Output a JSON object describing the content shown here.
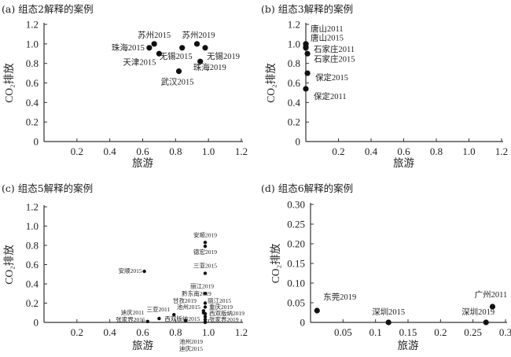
{
  "chart_data": [
    {
      "type": "scatter",
      "title": "(a) 组态2解释的案例",
      "xlabel": "旅游",
      "ylabel": "CO₂排放",
      "xlim": [
        0,
        1.2
      ],
      "ylim": [
        0,
        1.2
      ],
      "xticks": [
        "0.2",
        "0.4",
        "0.6",
        "0.8",
        "1.0",
        "1.2"
      ],
      "xtick_values": [
        0.2,
        0.4,
        0.6,
        0.8,
        1.0,
        1.2
      ],
      "yticks": [
        "0",
        "0.2",
        "0.4",
        "0.6",
        "0.8",
        "1.0",
        "1.2"
      ],
      "ytick_values": [
        0,
        0.2,
        0.4,
        0.6,
        0.8,
        1.0,
        1.2
      ],
      "points": [
        {
          "label": "苏州2015",
          "x": 0.67,
          "y": 1.0
        },
        {
          "label": "珠海2015",
          "x": 0.64,
          "y": 0.96
        },
        {
          "label": "天津2015",
          "x": 0.7,
          "y": 0.9
        },
        {
          "label": "无锡2015",
          "x": 0.84,
          "y": 0.96
        },
        {
          "label": "苏州2019",
          "x": 0.93,
          "y": 1.0
        },
        {
          "label": "无锡2019",
          "x": 0.98,
          "y": 0.96
        },
        {
          "label": "珠海2019",
          "x": 0.95,
          "y": 0.82
        },
        {
          "label": "武汉2015",
          "x": 0.82,
          "y": 0.72
        }
      ]
    },
    {
      "type": "scatter",
      "title": "(b) 组态3解释的案例",
      "xlabel": "旅游",
      "ylabel": "CO₂排放",
      "xlim": [
        0,
        1.2
      ],
      "ylim": [
        0,
        1.2
      ],
      "xticks": [
        "0.2",
        "0.4",
        "0.6",
        "0.8",
        "1.0",
        "1.2"
      ],
      "xtick_values": [
        0.2,
        0.4,
        0.6,
        0.8,
        1.0,
        1.2
      ],
      "yticks": [
        "0",
        "0.2",
        "0.4",
        "0.6",
        "0.8",
        "1.0",
        "1.2"
      ],
      "ytick_values": [
        0,
        0.2,
        0.4,
        0.6,
        0.8,
        1.0,
        1.2
      ],
      "points": [
        {
          "label": "唐山2011",
          "x": 0.0,
          "y": 1.0
        },
        {
          "label": "唐山2015",
          "x": 0.0,
          "y": 0.97
        },
        {
          "label": "石家庄2011",
          "x": 0.0,
          "y": 0.96
        },
        {
          "label": "石家庄2015",
          "x": 0.01,
          "y": 0.9
        },
        {
          "label": "保定2015",
          "x": 0.01,
          "y": 0.7
        },
        {
          "label": "保定2011",
          "x": 0.0,
          "y": 0.54
        }
      ]
    },
    {
      "type": "scatter",
      "title": "(c) 组态5解释的案例",
      "xlabel": "旅游",
      "ylabel": "CO₂排放",
      "xlim": [
        0,
        1.2
      ],
      "ylim": [
        0,
        1.2
      ],
      "xticks": [
        "0.2",
        "0.4",
        "0.6",
        "0.8",
        "1.0",
        "1.2"
      ],
      "xtick_values": [
        0.2,
        0.4,
        0.6,
        0.8,
        1.0,
        1.2
      ],
      "yticks": [
        "0",
        "0.2",
        "0.4",
        "0.6",
        "0.8",
        "1.0",
        "1.2"
      ],
      "ytick_values": [
        0,
        0.2,
        0.4,
        0.6,
        0.8,
        1.0,
        1.2
      ],
      "points": [
        {
          "label": "安顺2019",
          "x": 0.98,
          "y": 0.83
        },
        {
          "label": "德宏2019",
          "x": 0.98,
          "y": 0.79
        },
        {
          "label": "安顺2015",
          "x": 0.61,
          "y": 0.53
        },
        {
          "label": "三亚2015",
          "x": 0.98,
          "y": 0.51
        },
        {
          "label": "丽江2019",
          "x": 0.98,
          "y": 0.3
        },
        {
          "label": "黔东南2019",
          "x": 0.98,
          "y": 0.2
        },
        {
          "label": "丽江2015",
          "x": 0.98,
          "y": 0.16
        },
        {
          "label": "甘孜2019",
          "x": 0.97,
          "y": 0.12
        },
        {
          "label": "池州2015",
          "x": 0.97,
          "y": 0.1
        },
        {
          "label": "重庆2019",
          "x": 0.98,
          "y": 0.09
        },
        {
          "label": "西双版纳2019",
          "x": 0.98,
          "y": 0.06
        },
        {
          "label": "张家界2019",
          "x": 0.98,
          "y": 0.03
        },
        {
          "label": "三亚2011",
          "x": 0.79,
          "y": 0.08
        },
        {
          "label": "迪庆2011",
          "x": 0.7,
          "y": 0.04
        },
        {
          "label": "张家界2015",
          "x": 0.63,
          "y": 0.01
        },
        {
          "label": "西双版纳2015",
          "x": 0.86,
          "y": 0.02
        },
        {
          "label": "池州2019",
          "x": 0.98,
          "y": 0.005
        },
        {
          "label": "迪庆2015",
          "x": 0.98,
          "y": 0.0
        }
      ]
    },
    {
      "type": "scatter",
      "title": "(d) 组态6解释的案例",
      "xlabel": "旅游",
      "ylabel": "CO₂排放",
      "xlim": [
        0,
        0.3
      ],
      "ylim": [
        0,
        0.3
      ],
      "xticks": [
        "0.05",
        "0.1",
        "0.15",
        "0.2",
        "0.25",
        "0.3"
      ],
      "xtick_values": [
        0.05,
        0.1,
        0.15,
        0.2,
        0.25,
        0.3
      ],
      "yticks": [
        "0",
        "0.05",
        "0.10",
        "0.15",
        "0.20",
        "0.25",
        "0.30"
      ],
      "ytick_values": [
        0,
        0.05,
        0.1,
        0.15,
        0.2,
        0.25,
        0.3
      ],
      "points": [
        {
          "label": "东莞2019",
          "x": 0.01,
          "y": 0.03
        },
        {
          "label": "深圳2015",
          "x": 0.12,
          "y": 0.0
        },
        {
          "label": "深圳2019",
          "x": 0.27,
          "y": 0.0
        },
        {
          "label": "广州2011",
          "x": 0.28,
          "y": 0.04
        }
      ]
    }
  ]
}
